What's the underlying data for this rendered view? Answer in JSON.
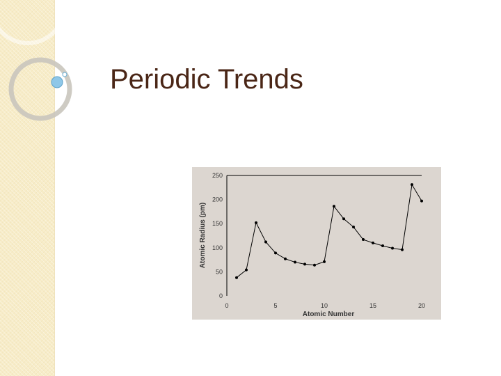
{
  "slide": {
    "title": "Periodic Trends"
  },
  "colors": {
    "band": "#f7ecc8",
    "title": "#4a2616",
    "chart_bg": "#dcd6d0",
    "line": "#000000"
  },
  "chart_data": {
    "type": "line",
    "title": "",
    "xlabel": "Atomic Number",
    "ylabel": "Atomic Radius (pm)",
    "xlim": [
      0,
      20
    ],
    "ylim": [
      0,
      250
    ],
    "xticks": [
      0,
      5,
      10,
      15,
      20
    ],
    "yticks": [
      0,
      50,
      100,
      150,
      200,
      250
    ],
    "grid": false,
    "series": [
      {
        "x": [
          1,
          2,
          3,
          4,
          5,
          6,
          7,
          8,
          9,
          10,
          11,
          12,
          13,
          14,
          15,
          16,
          17,
          18,
          19,
          20
        ],
        "values": [
          38,
          54,
          152,
          112,
          89,
          77,
          70,
          66,
          64,
          71,
          186,
          160,
          143,
          117,
          110,
          104,
          99,
          96,
          231,
          197
        ]
      }
    ]
  }
}
